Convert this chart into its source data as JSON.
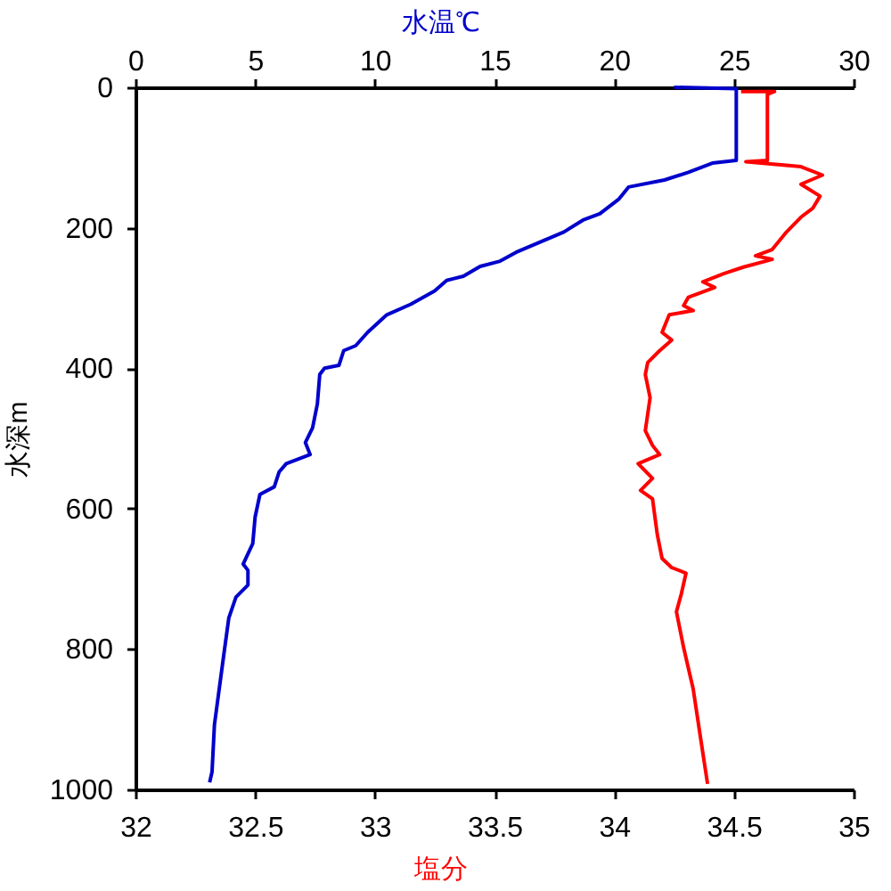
{
  "chart_data": {
    "type": "line",
    "xlabel": "塩分",
    "x2label": "水温℃",
    "ylabel": "水深m",
    "xlim": [
      32,
      35
    ],
    "xticks": [
      32,
      32.5,
      33,
      33.5,
      34,
      34.5,
      35
    ],
    "x2lim": [
      0,
      30
    ],
    "x2ticks": [
      0,
      5,
      10,
      15,
      20,
      25,
      30
    ],
    "ylim": [
      1000,
      0
    ],
    "yticks": [
      0,
      200,
      400,
      600,
      800,
      1000
    ],
    "series": [
      {
        "color": "#0000cc",
        "axis": "x2",
        "x": [
          22.5,
          25.1,
          25.1,
          24.1,
          23.1,
          22.1,
          20.6,
          20.2,
          19.4,
          18.7,
          17.9,
          16.8,
          15.9,
          15.2,
          14.4,
          13.7,
          13.0,
          12.5,
          11.5,
          10.5,
          9.7,
          9.2,
          8.7,
          8.5,
          7.9,
          7.7,
          7.6,
          7.4,
          7.1,
          7.3,
          6.3,
          6.0,
          5.8,
          5.3,
          5.2,
          5.0,
          4.9,
          4.5,
          4.7,
          4.7,
          4.2,
          3.9,
          3.7,
          3.5,
          3.3,
          3.2,
          3.1
        ],
        "values": [
          0,
          2,
          104,
          108,
          121,
          132,
          142,
          159,
          180,
          189,
          206,
          222,
          235,
          248,
          255,
          269,
          275,
          290,
          309,
          324,
          349,
          368,
          375,
          396,
          400,
          409,
          451,
          485,
          506,
          523,
          536,
          548,
          569,
          578,
          580,
          612,
          650,
          679,
          688,
          709,
          726,
          756,
          806,
          857,
          908,
          975,
          990
        ]
      },
      {
        "color": "#ff0000",
        "x": [
          34.53,
          34.67,
          34.64,
          34.64,
          34.55,
          34.78,
          34.87,
          34.78,
          34.86,
          34.83,
          34.78,
          34.72,
          34.66,
          34.59,
          34.66,
          34.54,
          34.46,
          34.37,
          34.42,
          34.31,
          34.29,
          34.33,
          34.23,
          34.2,
          34.24,
          34.19,
          34.14,
          34.13,
          34.15,
          34.13,
          34.16,
          34.19,
          34.1,
          34.16,
          34.11,
          34.16,
          34.18,
          34.2,
          34.24,
          34.3,
          34.28,
          34.26,
          34.29,
          34.33,
          34.36,
          34.39
        ],
        "values": [
          6,
          6,
          10,
          104,
          106,
          113,
          125,
          138,
          155,
          172,
          185,
          206,
          231,
          240,
          245,
          256,
          265,
          277,
          285,
          299,
          311,
          318,
          324,
          349,
          360,
          375,
          392,
          409,
          442,
          489,
          510,
          523,
          536,
          557,
          574,
          586,
          637,
          671,
          684,
          692,
          722,
          747,
          798,
          857,
          925,
          992
        ]
      }
    ]
  }
}
